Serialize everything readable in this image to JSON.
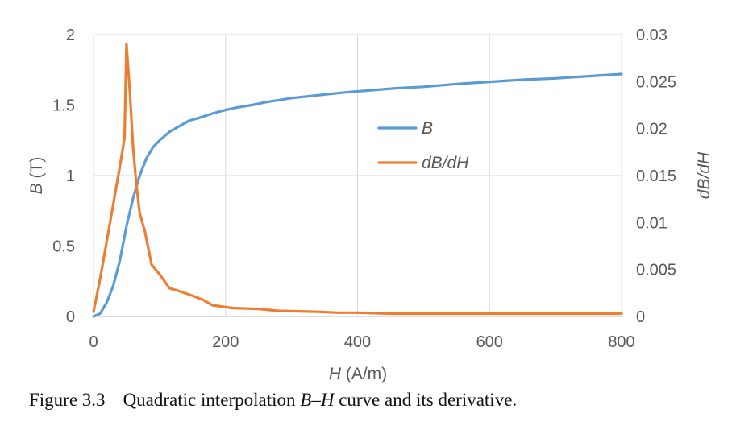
{
  "chart_data": {
    "type": "line",
    "xlabel": "H (A/m)",
    "ylabel_left": "B (T)",
    "ylabel_right": "dB/dH",
    "xlim": [
      0,
      800
    ],
    "ylim_left": [
      0,
      2
    ],
    "ylim_right": [
      0,
      0.03
    ],
    "x_ticks": [
      "0",
      "200",
      "400",
      "600",
      "800"
    ],
    "y_left_ticks": [
      "0",
      "0.5",
      "1",
      "1.5",
      "2"
    ],
    "y_right_ticks": [
      "0",
      "0.005",
      "0.01",
      "0.015",
      "0.02",
      "0.025",
      "0.03"
    ],
    "grid": true,
    "legend_position": "center",
    "series": [
      {
        "name": "B",
        "axis": "left",
        "color": "#5B9BD5",
        "x": [
          0,
          10,
          20,
          30,
          40,
          50,
          60,
          70,
          80,
          90,
          100,
          115,
          130,
          145,
          160,
          180,
          200,
          220,
          240,
          260,
          280,
          300,
          340,
          380,
          420,
          460,
          500,
          550,
          600,
          650,
          700,
          750,
          800
        ],
        "y": [
          0,
          0.02,
          0.1,
          0.22,
          0.4,
          0.64,
          0.84,
          1.0,
          1.12,
          1.2,
          1.25,
          1.31,
          1.35,
          1.39,
          1.41,
          1.44,
          1.465,
          1.485,
          1.5,
          1.52,
          1.535,
          1.55,
          1.57,
          1.59,
          1.605,
          1.62,
          1.63,
          1.65,
          1.665,
          1.68,
          1.69,
          1.705,
          1.72
        ]
      },
      {
        "name": "dB/dH",
        "axis": "right",
        "color": "#ED7D31",
        "x": [
          0,
          10,
          20,
          30,
          40,
          47,
          50,
          55,
          60,
          65,
          70,
          78,
          88,
          100,
          115,
          130,
          150,
          165,
          180,
          210,
          250,
          280,
          340,
          370,
          400,
          450,
          500,
          600,
          700,
          800
        ],
        "y": [
          0.0005,
          0.004,
          0.008,
          0.012,
          0.016,
          0.019,
          0.029,
          0.024,
          0.018,
          0.014,
          0.011,
          0.009,
          0.0055,
          0.0045,
          0.003,
          0.0027,
          0.0022,
          0.0018,
          0.0012,
          0.0009,
          0.0008,
          0.0006,
          0.0005,
          0.0004,
          0.0004,
          0.0003,
          0.0003,
          0.0003,
          0.0003,
          0.0003
        ]
      }
    ]
  },
  "caption": {
    "number": "Figure 3.3",
    "text_before": "Quadratic interpolation ",
    "text_italic": "B–H",
    "text_after": " curve and its derivative."
  }
}
